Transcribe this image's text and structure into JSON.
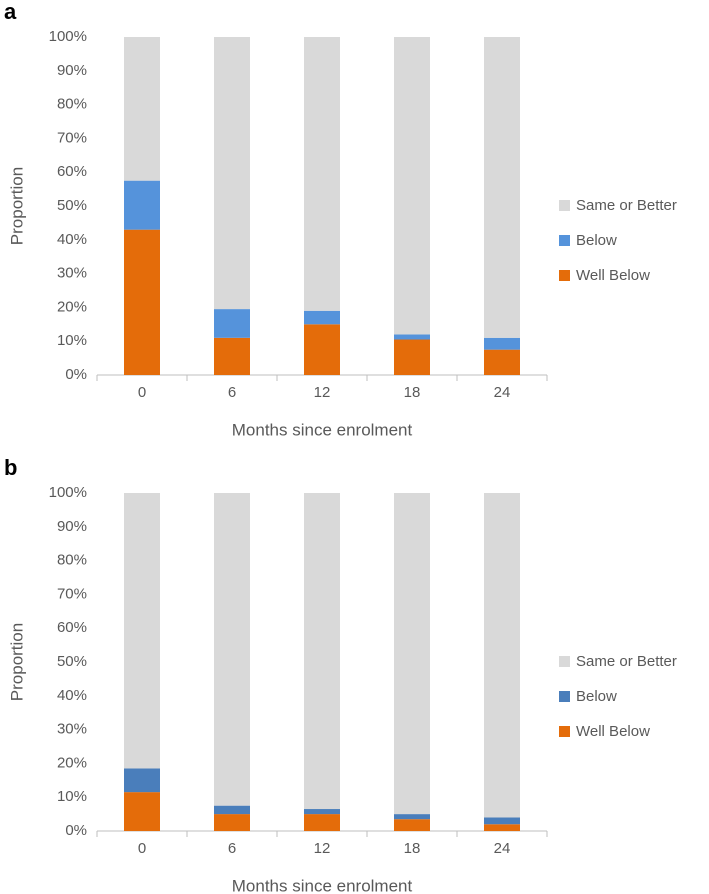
{
  "chart_data": [
    {
      "type": "bar",
      "stacked": true,
      "panel": "a",
      "x_label": "Months since enrolment",
      "y_label": "Proportion",
      "legend": "right",
      "categories": [
        "0",
        "6",
        "12",
        "18",
        "24"
      ],
      "series": [
        {
          "name": "Well Below",
          "color": "#e46c0a",
          "values": [
            43,
            11,
            15,
            10.5,
            7.5
          ]
        },
        {
          "name": "Below",
          "color": "#5593db",
          "values": [
            14.5,
            8.5,
            4,
            1.5,
            3.5
          ]
        },
        {
          "name": "Same or Better",
          "color": "#d9d9d9",
          "values": [
            42.5,
            80.5,
            81,
            88,
            89
          ]
        }
      ],
      "ylim": [
        0,
        100
      ],
      "yticks": [
        {
          "value": 0,
          "label": "0%"
        },
        {
          "value": 10,
          "label": "10%"
        },
        {
          "value": 20,
          "label": "20%"
        },
        {
          "value": 30,
          "label": "30%"
        },
        {
          "value": 40,
          "label": "40%"
        },
        {
          "value": 50,
          "label": "50%"
        },
        {
          "value": 60,
          "label": "60%"
        },
        {
          "value": 70,
          "label": "70%"
        },
        {
          "value": 80,
          "label": "80%"
        },
        {
          "value": 90,
          "label": "90%"
        },
        {
          "value": 100,
          "label": "100%"
        }
      ]
    },
    {
      "type": "bar",
      "stacked": true,
      "panel": "b",
      "x_label": "Months since enrolment",
      "y_label": "Proportion",
      "legend": "right",
      "categories": [
        "0",
        "6",
        "12",
        "18",
        "24"
      ],
      "series": [
        {
          "name": "Well Below",
          "color": "#e46c0a",
          "values": [
            11.5,
            5,
            5,
            3.5,
            2
          ]
        },
        {
          "name": "Below",
          "color": "#4a7ebb",
          "values": [
            7,
            2.5,
            1.5,
            1.5,
            2
          ]
        },
        {
          "name": "Same or Better",
          "color": "#d9d9d9",
          "values": [
            81.5,
            92.5,
            93.5,
            95,
            96
          ]
        }
      ],
      "ylim": [
        0,
        100
      ],
      "yticks": [
        {
          "value": 0,
          "label": "0%"
        },
        {
          "value": 10,
          "label": "10%"
        },
        {
          "value": 20,
          "label": "20%"
        },
        {
          "value": 30,
          "label": "30%"
        },
        {
          "value": 40,
          "label": "40%"
        },
        {
          "value": 50,
          "label": "50%"
        },
        {
          "value": 60,
          "label": "60%"
        },
        {
          "value": 70,
          "label": "70%"
        },
        {
          "value": 80,
          "label": "80%"
        },
        {
          "value": 90,
          "label": "90%"
        },
        {
          "value": 100,
          "label": "100%"
        }
      ]
    }
  ]
}
